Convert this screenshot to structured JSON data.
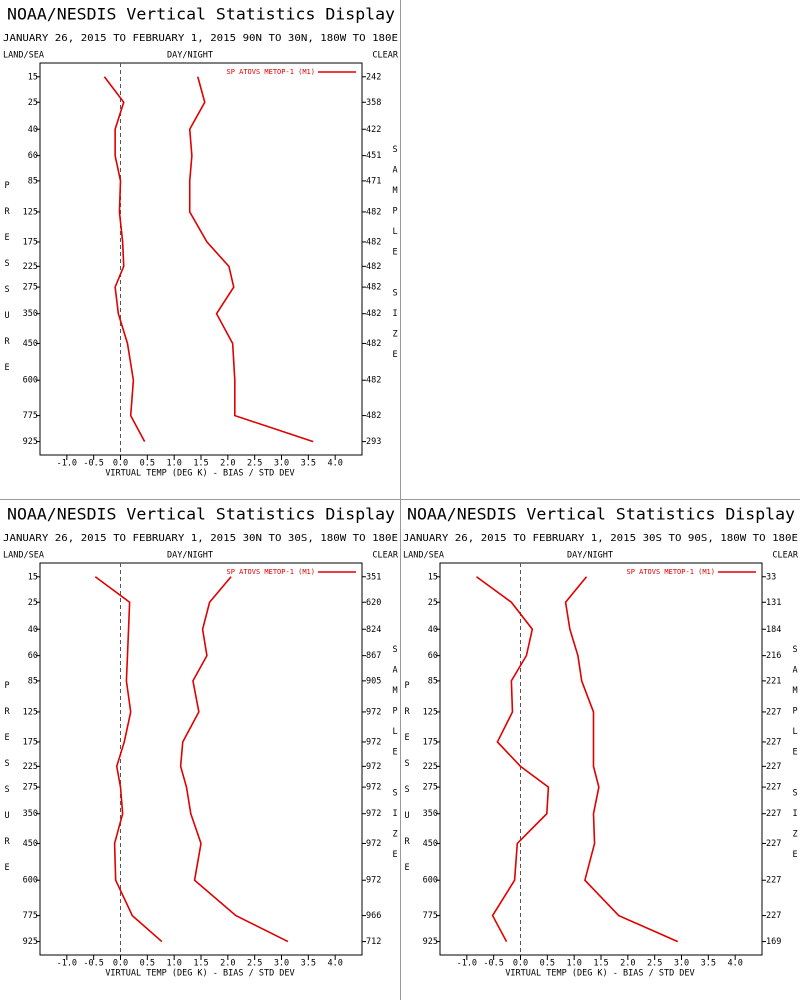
{
  "chart_data": [
    {
      "type": "line",
      "title": "NOAA/NESDIS Vertical Statistics Display",
      "subtitle": "JANUARY 26, 2015 TO FEBRUARY 1, 2015  90N TO 30N, 180W TO 180E",
      "land_sea": "LAND/SEA",
      "day_night": "DAY/NIGHT",
      "clear": "CLEAR",
      "y_label": "PRESSURE",
      "y2_label": "SAMPLE SIZE",
      "x_label": "VIRTUAL TEMP (DEG K) - BIAS / STD DEV",
      "y": [
        15,
        25,
        40,
        60,
        85,
        125,
        175,
        225,
        275,
        350,
        450,
        600,
        775,
        925
      ],
      "ylim": [
        11,
        1010
      ],
      "xlim": [
        -1.5,
        4.5
      ],
      "xticks": [
        {
          "value": -1,
          "label": "-1.0"
        },
        -0.5,
        {
          "value": 0,
          "label": "0.0"
        },
        0.5,
        {
          "value": 1,
          "label": "1.0"
        },
        1.5,
        {
          "value": 2,
          "label": "2.0"
        },
        2.5,
        {
          "value": 3,
          "label": "3.0"
        },
        3.5,
        {
          "value": 4,
          "label": "4.0"
        }
      ],
      "zero_line": true,
      "legend": "upper right",
      "series": [
        {
          "name": "SP ATOVS METOP-1 (M1)",
          "color": "#e00000",
          "bias": [
            -0.3,
            0.06,
            -0.1,
            -0.1,
            0.0,
            -0.02,
            0.04,
            0.06,
            -0.1,
            -0.04,
            0.13,
            0.24,
            0.19,
            0.45
          ],
          "std_dev": [
            1.44,
            1.57,
            1.29,
            1.33,
            1.29,
            1.29,
            1.61,
            2.02,
            2.11,
            1.79,
            2.09,
            2.13,
            2.13,
            3.59
          ]
        }
      ],
      "sample_size": [
        242,
        358,
        422,
        451,
        471,
        482,
        482,
        482,
        482,
        482,
        482,
        482,
        482,
        293
      ]
    },
    {
      "type": "line",
      "title": "NOAA/NESDIS Vertical Statistics Display",
      "subtitle": "JANUARY 26, 2015 TO FEBRUARY 1, 2015  30N TO 30S, 180W TO 180E",
      "land_sea": "LAND/SEA",
      "day_night": "DAY/NIGHT",
      "clear": "CLEAR",
      "y_label": "PRESSURE",
      "y2_label": "SAMPLE SIZE",
      "x_label": "VIRTUAL TEMP (DEG K) - BIAS / STD DEV",
      "y": [
        15,
        25,
        40,
        60,
        85,
        125,
        175,
        225,
        275,
        350,
        450,
        600,
        775,
        925
      ],
      "ylim": [
        11,
        1010
      ],
      "xlim": [
        -1.5,
        4.5
      ],
      "xticks": [
        {
          "value": -1,
          "label": "-1.0"
        },
        -0.5,
        {
          "value": 0,
          "label": "0.0"
        },
        0.5,
        {
          "value": 1,
          "label": "1.0"
        },
        1.5,
        {
          "value": 2,
          "label": "2.0"
        },
        2.5,
        {
          "value": 3,
          "label": "3.0"
        },
        3.5,
        {
          "value": 4,
          "label": "4.0"
        }
      ],
      "zero_line": true,
      "legend": "upper right",
      "series": [
        {
          "name": "SP ATOVS METOP-1 (M1)",
          "color": "#e00000",
          "bias": [
            -0.47,
            0.17,
            0.15,
            0.13,
            0.11,
            0.19,
            0.07,
            -0.07,
            0.0,
            0.04,
            -0.11,
            -0.09,
            0.22,
            0.77
          ],
          "std_dev": [
            2.06,
            1.66,
            1.53,
            1.61,
            1.35,
            1.46,
            1.16,
            1.12,
            1.23,
            1.31,
            1.5,
            1.38,
            2.15,
            3.12
          ]
        }
      ],
      "sample_size": [
        351,
        620,
        824,
        867,
        905,
        972,
        972,
        972,
        972,
        972,
        972,
        972,
        966,
        712
      ]
    },
    {
      "type": "line",
      "title": "NOAA/NESDIS Vertical Statistics Display",
      "subtitle": "JANUARY 26, 2015 TO FEBRUARY 1, 2015  30S TO 90S, 180W TO 180E",
      "land_sea": "LAND/SEA",
      "day_night": "DAY/NIGHT",
      "clear": "CLEAR",
      "y_label": "PRESSURE",
      "y2_label": "SAMPLE SIZE",
      "x_label": "VIRTUAL TEMP (DEG K) - BIAS / STD DEV",
      "y": [
        15,
        25,
        40,
        60,
        85,
        125,
        175,
        225,
        275,
        350,
        450,
        600,
        775,
        925
      ],
      "ylim": [
        11,
        1010
      ],
      "xlim": [
        -1.5,
        4.5
      ],
      "xticks": [
        {
          "value": -1,
          "label": "-1.0"
        },
        -0.5,
        {
          "value": 0,
          "label": "0.0"
        },
        0.5,
        {
          "value": 1,
          "label": "1.0"
        },
        1.5,
        {
          "value": 2,
          "label": "2.0"
        },
        2.5,
        {
          "value": 3,
          "label": "3.0"
        },
        3.5,
        {
          "value": 4,
          "label": "4.0"
        }
      ],
      "zero_line": true,
      "legend": "upper right",
      "series": [
        {
          "name": "SP ATOVS METOP-1 (M1)",
          "color": "#e00000",
          "bias": [
            -0.82,
            -0.17,
            0.22,
            0.11,
            -0.17,
            -0.15,
            -0.43,
            0.0,
            0.52,
            0.49,
            -0.06,
            -0.11,
            -0.52,
            -0.26
          ],
          "std_dev": [
            1.23,
            0.84,
            0.92,
            1.07,
            1.14,
            1.36,
            1.36,
            1.36,
            1.46,
            1.36,
            1.38,
            1.2,
            1.83,
            2.93
          ]
        }
      ],
      "sample_size": [
        33,
        131,
        184,
        216,
        221,
        227,
        227,
        227,
        227,
        227,
        227,
        227,
        227,
        169
      ]
    }
  ]
}
